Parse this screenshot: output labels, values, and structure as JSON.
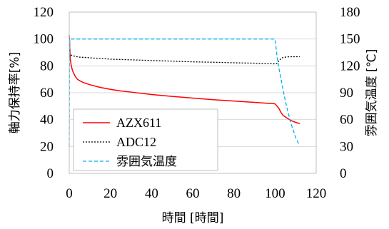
{
  "chart_data": {
    "type": "line",
    "xlabel": "時間 [時間]",
    "ylabel": "軸力保持率[%]",
    "y2label": "雰囲気温度 [℃]",
    "xlim": [
      0,
      120
    ],
    "ylim": [
      0,
      120
    ],
    "y2lim": [
      0,
      180
    ],
    "x_ticks": [
      0,
      20,
      40,
      60,
      80,
      100,
      120
    ],
    "y_ticks": [
      0,
      20,
      40,
      60,
      80,
      100,
      120
    ],
    "y2_ticks": [
      0,
      30,
      60,
      90,
      120,
      150,
      180
    ],
    "grid": "horizontal",
    "legend_position": "bottom-left",
    "series": [
      {
        "name": "AZX611",
        "axis": "left",
        "color": "#ff0000",
        "dash": "solid",
        "x": [
          0,
          0.2,
          0.5,
          1,
          1.5,
          2,
          3,
          4,
          5,
          7,
          10,
          15,
          20,
          25,
          30,
          40,
          50,
          60,
          70,
          80,
          90,
          100,
          101,
          102,
          103,
          104,
          105,
          107,
          109,
          111,
          112
        ],
        "y": [
          103,
          96,
          85,
          80,
          77,
          75,
          72,
          70,
          69,
          67.5,
          66,
          64,
          62.5,
          61.3,
          60.5,
          58.7,
          57.3,
          56,
          54.8,
          53.8,
          52.8,
          51.8,
          50,
          48,
          45,
          43,
          42,
          40,
          38.5,
          37.5,
          37
        ]
      },
      {
        "name": "ADC12",
        "axis": "left",
        "color": "#000000",
        "dash": "dotted",
        "x": [
          0,
          0.3,
          0.7,
          1,
          2,
          3,
          5,
          10,
          15,
          20,
          30,
          40,
          50,
          60,
          70,
          80,
          90,
          95,
          100,
          101,
          102,
          103,
          104,
          106,
          108,
          110,
          112
        ],
        "y": [
          92,
          89,
          88,
          88,
          87.5,
          87,
          86.5,
          86,
          85.5,
          85,
          84.5,
          84,
          83.5,
          83,
          82.7,
          82.3,
          82,
          81.7,
          81.5,
          82,
          84,
          85.5,
          86.3,
          86.7,
          86.8,
          86.8,
          86.8
        ]
      },
      {
        "name": "雰囲気温度",
        "axis": "right",
        "color": "#00b0f0",
        "dash": "dashed",
        "x": [
          0,
          0.15,
          0.3,
          1,
          10,
          50,
          100,
          101,
          102,
          103,
          104,
          105,
          106,
          107,
          108,
          109,
          110,
          111,
          112
        ],
        "y": [
          30,
          120,
          150,
          150,
          150,
          150,
          150,
          130,
          116,
          104,
          92,
          81,
          71,
          62,
          54,
          47,
          40,
          35,
          31
        ]
      }
    ]
  }
}
